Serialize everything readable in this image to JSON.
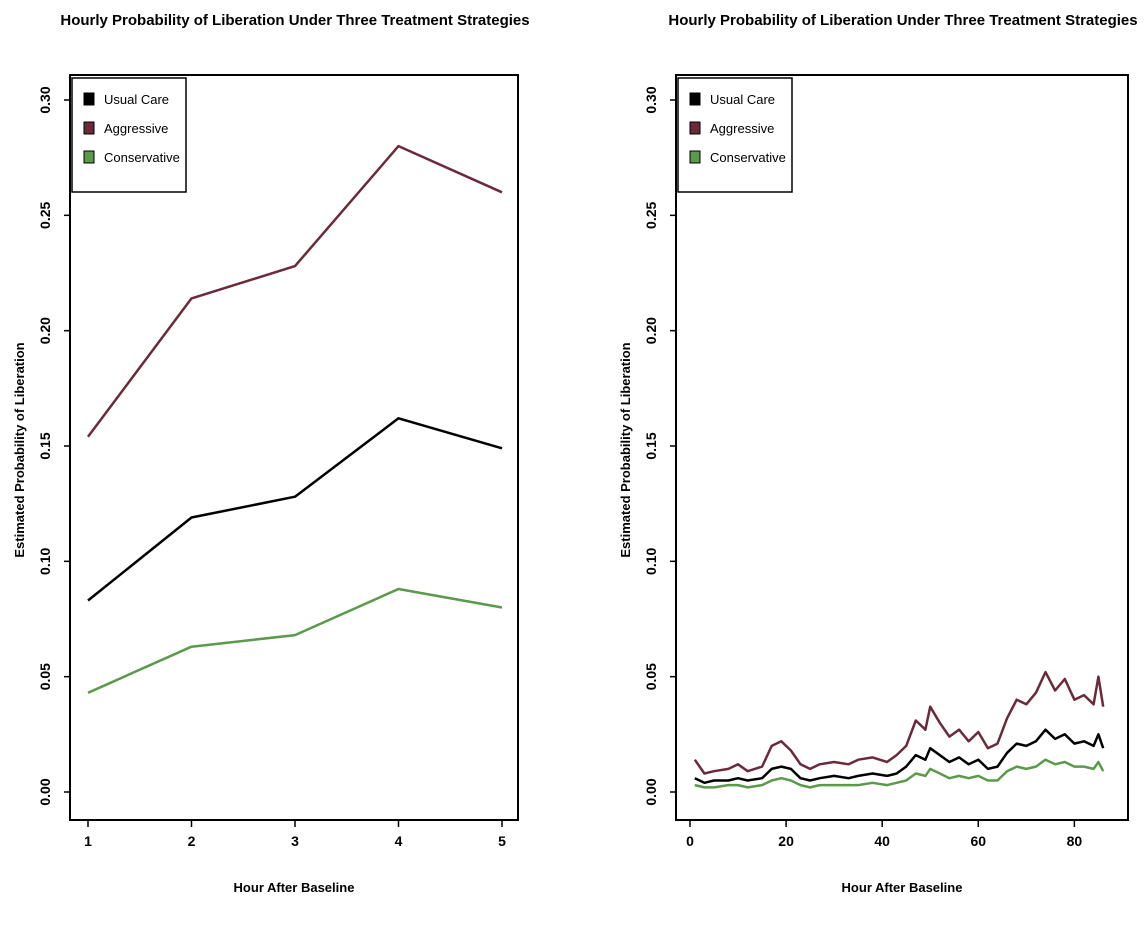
{
  "chart_data": [
    {
      "type": "line",
      "title": "Hourly Probability of Liberation Under Three Treatment Strategies",
      "xlabel": "Hour After Baseline",
      "ylabel": "Estimated Probability of Liberation",
      "xlim": [
        1,
        5
      ],
      "ylim": [
        0,
        0.3
      ],
      "xticks": [
        "1",
        "2",
        "3",
        "4",
        "5"
      ],
      "yticks": [
        "0.00",
        "0.05",
        "0.10",
        "0.15",
        "0.20",
        "0.25",
        "0.30"
      ],
      "legend_position": "top-left",
      "grid": false,
      "x": [
        1,
        2,
        3,
        4,
        5
      ],
      "series": [
        {
          "name": "Usual Care",
          "color": "#000000",
          "values": [
            0.083,
            0.119,
            0.128,
            0.162,
            0.149
          ]
        },
        {
          "name": "Aggressive",
          "color": "#6b2a3a",
          "values": [
            0.154,
            0.214,
            0.228,
            0.28,
            0.26
          ]
        },
        {
          "name": "Conservative",
          "color": "#5a9a4a",
          "values": [
            0.043,
            0.063,
            0.068,
            0.088,
            0.08
          ]
        }
      ]
    },
    {
      "type": "line",
      "title": "Hourly Probability of Liberation Under Three Treatment Strategies",
      "xlabel": "Hour After Baseline",
      "ylabel": "Estimated Probability of Liberation",
      "xlim": [
        0,
        87
      ],
      "ylim": [
        0,
        0.3
      ],
      "xticks": [
        "0",
        "20",
        "40",
        "60",
        "80"
      ],
      "yticks": [
        "0.00",
        "0.05",
        "0.10",
        "0.15",
        "0.20",
        "0.25",
        "0.30"
      ],
      "legend_position": "top-left",
      "grid": false,
      "x": [
        1,
        3,
        5,
        8,
        10,
        12,
        15,
        17,
        19,
        21,
        23,
        25,
        27,
        30,
        33,
        35,
        38,
        41,
        43,
        45,
        47,
        49,
        50,
        52,
        54,
        56,
        58,
        60,
        62,
        64,
        66,
        68,
        70,
        72,
        74,
        76,
        78,
        80,
        82,
        84,
        85,
        86
      ],
      "series": [
        {
          "name": "Usual Care",
          "color": "#000000",
          "values": [
            0.006,
            0.004,
            0.005,
            0.005,
            0.006,
            0.005,
            0.006,
            0.01,
            0.011,
            0.01,
            0.006,
            0.005,
            0.006,
            0.007,
            0.006,
            0.007,
            0.008,
            0.007,
            0.008,
            0.011,
            0.016,
            0.014,
            0.019,
            0.016,
            0.013,
            0.015,
            0.012,
            0.014,
            0.01,
            0.011,
            0.017,
            0.021,
            0.02,
            0.022,
            0.027,
            0.023,
            0.025,
            0.021,
            0.022,
            0.02,
            0.025,
            0.019
          ]
        },
        {
          "name": "Aggressive",
          "color": "#6b2a3a",
          "values": [
            0.014,
            0.008,
            0.009,
            0.01,
            0.012,
            0.009,
            0.011,
            0.02,
            0.022,
            0.018,
            0.012,
            0.01,
            0.012,
            0.013,
            0.012,
            0.014,
            0.015,
            0.013,
            0.016,
            0.02,
            0.031,
            0.027,
            0.037,
            0.03,
            0.024,
            0.027,
            0.022,
            0.026,
            0.019,
            0.021,
            0.032,
            0.04,
            0.038,
            0.043,
            0.052,
            0.044,
            0.049,
            0.04,
            0.042,
            0.038,
            0.05,
            0.037
          ]
        },
        {
          "name": "Conservative",
          "color": "#5a9a4a",
          "values": [
            0.003,
            0.002,
            0.002,
            0.003,
            0.003,
            0.002,
            0.003,
            0.005,
            0.006,
            0.005,
            0.003,
            0.002,
            0.003,
            0.003,
            0.003,
            0.003,
            0.004,
            0.003,
            0.004,
            0.005,
            0.008,
            0.007,
            0.01,
            0.008,
            0.006,
            0.007,
            0.006,
            0.007,
            0.005,
            0.005,
            0.009,
            0.011,
            0.01,
            0.011,
            0.014,
            0.012,
            0.013,
            0.011,
            0.011,
            0.01,
            0.013,
            0.009
          ]
        }
      ]
    }
  ]
}
